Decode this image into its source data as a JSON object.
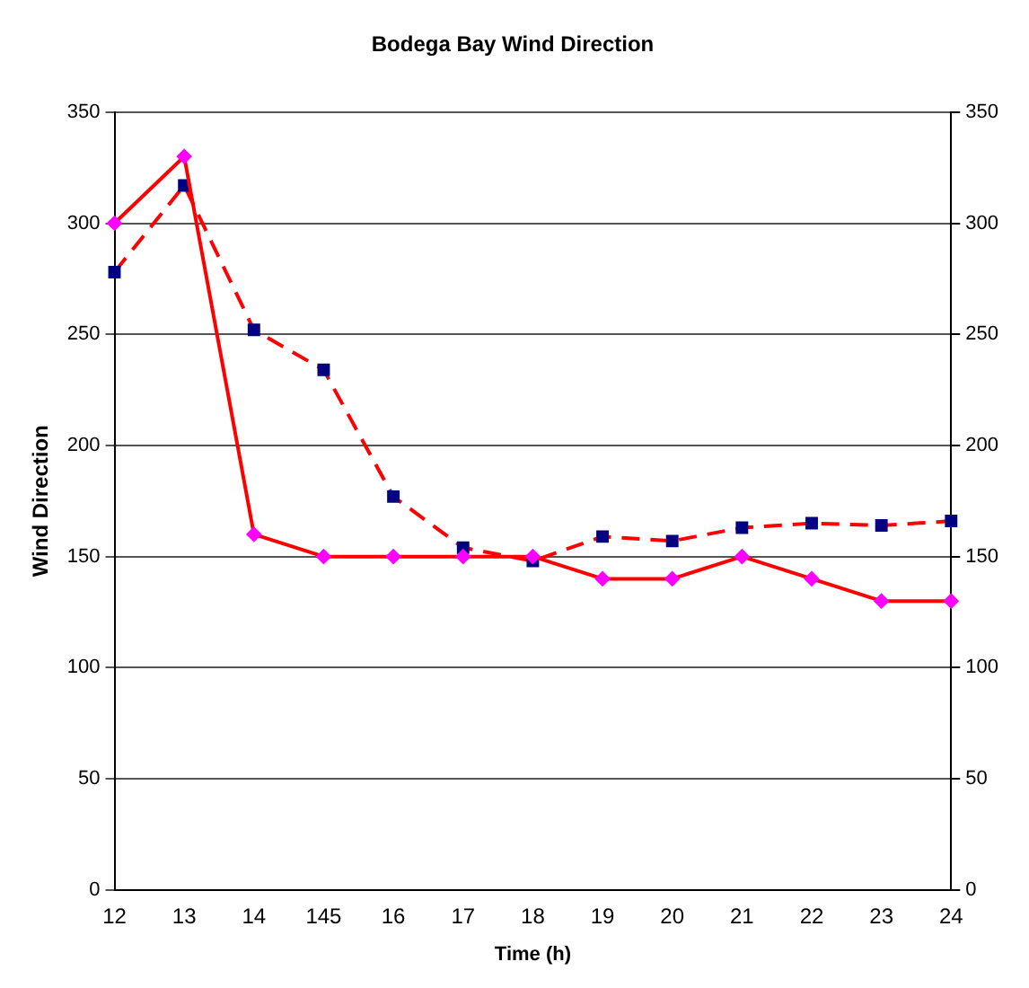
{
  "chart_data": {
    "type": "line",
    "title": "Bodega Bay Wind Direction",
    "xlabel": "Time (h)",
    "ylabel": "Wind Direction",
    "categories": [
      "12",
      "13",
      "14",
      "145",
      "16",
      "17",
      "18",
      "19",
      "20",
      "21",
      "22",
      "23",
      "24"
    ],
    "series": [
      {
        "color": "#ff0000",
        "marker": "diamond",
        "line_style": "solid",
        "values": [
          300,
          330,
          160,
          150,
          150,
          150,
          150,
          140,
          140,
          150,
          140,
          130,
          130
        ]
      },
      {
        "color": "#ff0000",
        "marker": "square",
        "line_style": "dashed",
        "values": [
          278,
          317,
          252,
          234,
          177,
          154,
          148,
          159,
          157,
          163,
          165,
          164,
          166
        ]
      }
    ],
    "ylim": [
      0,
      350
    ],
    "yticks": [
      0,
      50,
      100,
      150,
      200,
      250,
      300,
      350
    ],
    "y2lim": [
      0,
      350
    ],
    "y2ticks": [
      0,
      50,
      100,
      150,
      200,
      250,
      300,
      350
    ],
    "grid": "y",
    "legend": false
  }
}
